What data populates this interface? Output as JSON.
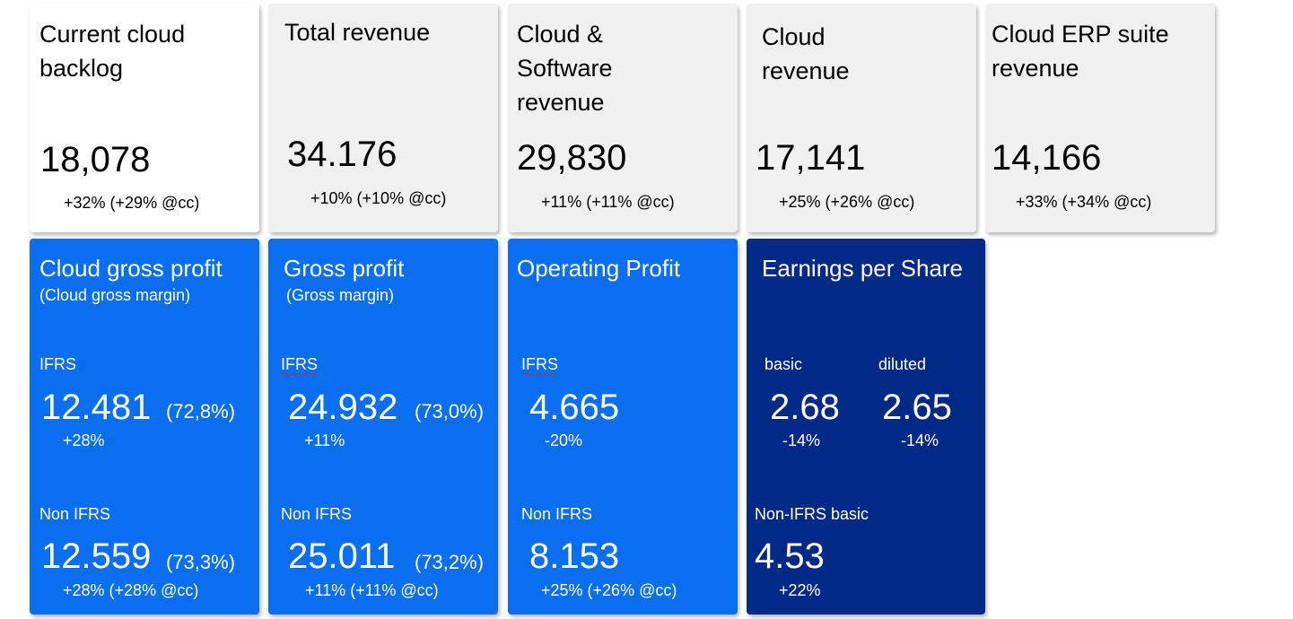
{
  "top_cards": [
    {
      "title_lines": [
        "Current cloud",
        "backlog"
      ],
      "value": "18,078",
      "change": "+32% (+29% @cc)"
    },
    {
      "title_lines": [
        "Total revenue"
      ],
      "value": "34.176",
      "change": "+10% (+10% @cc)"
    },
    {
      "title_lines": [
        "Cloud &",
        "Software",
        "revenue"
      ],
      "value": "29,830",
      "change": "+11% (+11% @cc)"
    },
    {
      "title_lines": [
        "Cloud",
        "revenue"
      ],
      "value": "17,141",
      "change": "+25% (+26% @cc)"
    },
    {
      "title_lines": [
        "Cloud ERP suite",
        "revenue"
      ],
      "value": "14,166",
      "change": "+33% (+34% @cc)"
    }
  ],
  "bottom_cards": [
    {
      "title": "Cloud gross profit",
      "subtitle": "(Cloud gross margin)",
      "ifrs_label": "IFRS",
      "ifrs_value": "12.481",
      "ifrs_margin": "(72,8%)",
      "ifrs_change": "+28%",
      "non_ifrs_label": "Non IFRS",
      "non_ifrs_value": "12.559",
      "non_ifrs_margin": "(73,3%)",
      "non_ifrs_change": "+28%  (+28%  @cc)"
    },
    {
      "title": "Gross profit",
      "subtitle": "(Gross margin)",
      "ifrs_label": "IFRS",
      "ifrs_value": "24.932",
      "ifrs_margin": "(73,0%)",
      "ifrs_change": "+11%",
      "non_ifrs_label": "Non IFRS",
      "non_ifrs_value": "25.011",
      "non_ifrs_margin": "(73,2%)",
      "non_ifrs_change": "+11% (+11% @cc)"
    },
    {
      "title": "Operating Profit",
      "ifrs_label": "IFRS",
      "ifrs_value": "4.665",
      "ifrs_change": "-20%",
      "non_ifrs_label": "Non IFRS",
      "non_ifrs_value": "8.153",
      "non_ifrs_change": "+25%  (+26%  @cc)"
    },
    {
      "title": "Earnings per Share",
      "basic_label": "basic",
      "basic_value": "2.68",
      "basic_change": "-14%",
      "diluted_label": "diluted",
      "diluted_value": "2.65",
      "diluted_change": "-14%",
      "non_ifrs_label": "Non-IFRS  basic",
      "non_ifrs_value": "4.53",
      "non_ifrs_change": "+22%"
    }
  ],
  "colors": {
    "card_grey": "#f0f0f0",
    "card_blue": "#0a6ef0",
    "card_navy": "#002a86"
  }
}
